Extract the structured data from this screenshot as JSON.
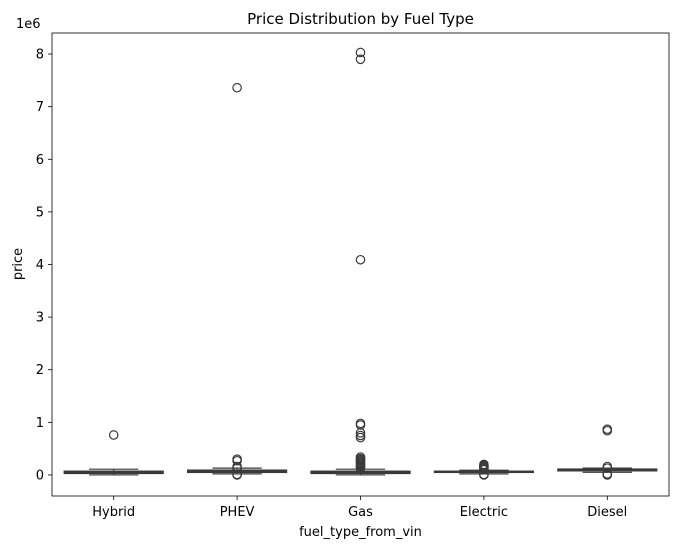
{
  "chart_data": {
    "type": "boxplot",
    "title": "Price Distribution by Fuel Type",
    "xlabel": "fuel_type_from_vin",
    "ylabel": "price",
    "y_offset_label": "1e6",
    "y_multiplier": 1000000,
    "ylim": [
      -0.4,
      8.4
    ],
    "y_ticks": [
      0,
      1,
      2,
      3,
      4,
      5,
      6,
      7,
      8
    ],
    "y_tick_labels": [
      "0",
      "1",
      "2",
      "3",
      "4",
      "5",
      "6",
      "7",
      "8"
    ],
    "grid": false,
    "legend": "none",
    "box_color": "#3a3a3a",
    "categories": [
      "Hybrid",
      "PHEV",
      "Gas",
      "Electric",
      "Diesel"
    ],
    "boxes": [
      {
        "category": "Hybrid",
        "whisker_low": 0.0,
        "q1": 0.03,
        "median": 0.05,
        "q3": 0.07,
        "whisker_high": 0.11,
        "outliers": [
          0.76
        ]
      },
      {
        "category": "PHEV",
        "whisker_low": 0.02,
        "q1": 0.05,
        "median": 0.07,
        "q3": 0.09,
        "whisker_high": 0.13,
        "outliers": [
          7.36,
          0.3,
          0.27,
          0.16,
          0.13,
          0.01,
          0.0
        ]
      },
      {
        "category": "Gas",
        "whisker_low": 0.0,
        "q1": 0.03,
        "median": 0.05,
        "q3": 0.07,
        "whisker_high": 0.11,
        "outliers": [
          8.03,
          7.9,
          4.09,
          0.98,
          0.95,
          0.8,
          0.75,
          0.71,
          0.34,
          0.31,
          0.29,
          0.27,
          0.25,
          0.23,
          0.21,
          0.19,
          0.17,
          0.15,
          0.13
        ]
      },
      {
        "category": "Electric",
        "whisker_low": 0.02,
        "q1": 0.05,
        "median": 0.06,
        "q3": 0.07,
        "whisker_high": 0.09,
        "outliers": [
          0.2,
          0.18,
          0.16,
          0.14,
          0.12,
          0.1,
          0.0,
          0.01
        ]
      },
      {
        "category": "Diesel",
        "whisker_low": 0.05,
        "q1": 0.08,
        "median": 0.1,
        "q3": 0.11,
        "whisker_high": 0.13,
        "outliers": [
          0.87,
          0.84,
          0.16,
          0.13,
          0.02,
          0.01,
          0.0
        ]
      }
    ]
  }
}
